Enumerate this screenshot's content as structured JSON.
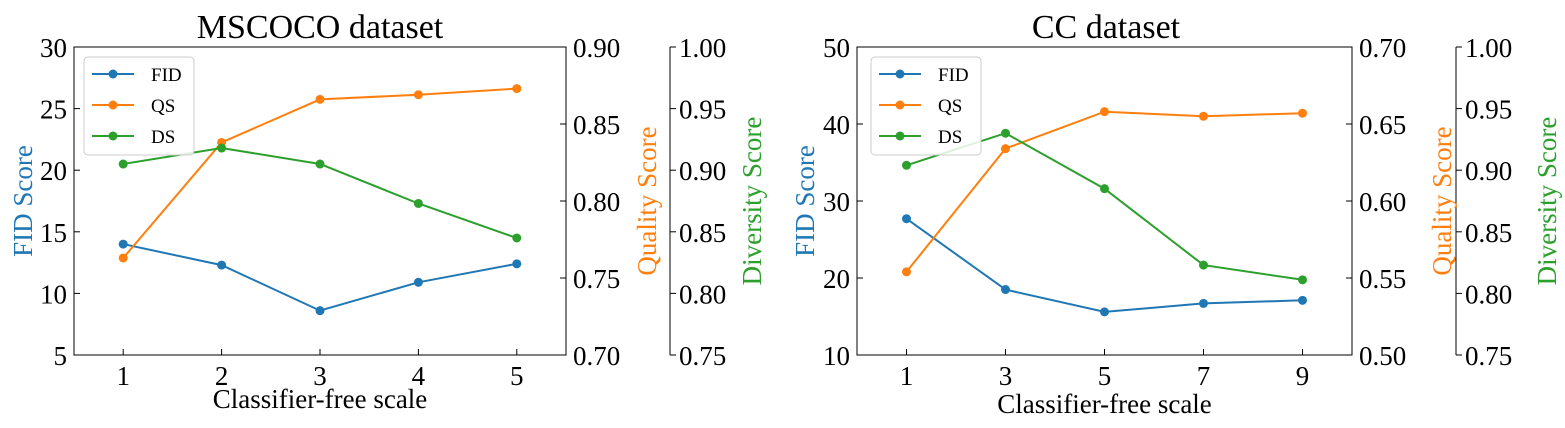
{
  "chart_data": [
    {
      "type": "line",
      "title": "MSCOCO dataset",
      "xlabel": "Classifier-free scale",
      "x": [
        1,
        2,
        3,
        4,
        5
      ],
      "xlim": [
        0.5,
        5.5
      ],
      "xticks": [
        "1",
        "2",
        "3",
        "4",
        "5"
      ],
      "axes": {
        "left": {
          "label": "FID Score",
          "range": [
            5,
            30
          ],
          "ticks": [
            "5",
            "10",
            "15",
            "20",
            "25",
            "30"
          ],
          "color": "#1f77b4"
        },
        "right1": {
          "label": "Quality Score",
          "range": [
            0.7,
            0.9
          ],
          "ticks": [
            "0.70",
            "0.75",
            "0.80",
            "0.85",
            "0.90"
          ],
          "color": "#ff7f0e"
        },
        "right2": {
          "label": "Diversity Score",
          "range": [
            0.75,
            1.0
          ],
          "ticks": [
            "0.75",
            "0.80",
            "0.85",
            "0.90",
            "0.95",
            "1.00"
          ],
          "color": "#2ca02c"
        }
      },
      "series": [
        {
          "name": "FID",
          "axis": "left",
          "color": "#1f77b4",
          "values": [
            14.0,
            12.3,
            8.6,
            10.9,
            12.4
          ]
        },
        {
          "name": "QS",
          "axis": "right1",
          "color": "#ff7f0e",
          "values": [
            0.763,
            0.838,
            0.866,
            0.869,
            0.873
          ]
        },
        {
          "name": "DS",
          "axis": "right2",
          "color": "#2ca02c",
          "values": [
            0.905,
            0.918,
            0.905,
            0.873,
            0.845
          ]
        }
      ],
      "legend": "top-left"
    },
    {
      "type": "line",
      "title": "CC dataset",
      "xlabel": "Classifier-free scale",
      "x": [
        1,
        3,
        5,
        7,
        9
      ],
      "xlim": [
        0,
        10
      ],
      "xticks": [
        "1",
        "3",
        "5",
        "7",
        "9"
      ],
      "axes": {
        "left": {
          "label": "FID Score",
          "range": [
            10,
            50
          ],
          "ticks": [
            "10",
            "20",
            "30",
            "40",
            "50"
          ],
          "color": "#1f77b4"
        },
        "right1": {
          "label": "Quality Score",
          "range": [
            0.5,
            0.7
          ],
          "ticks": [
            "0.50",
            "0.55",
            "0.60",
            "0.65",
            "0.70"
          ],
          "color": "#ff7f0e"
        },
        "right2": {
          "label": "Diversity Score",
          "range": [
            0.75,
            1.0
          ],
          "ticks": [
            "0.75",
            "0.80",
            "0.85",
            "0.90",
            "0.95",
            "1.00"
          ],
          "color": "#2ca02c"
        }
      },
      "series": [
        {
          "name": "FID",
          "axis": "left",
          "color": "#1f77b4",
          "values": [
            27.7,
            18.5,
            15.6,
            16.7,
            17.1
          ]
        },
        {
          "name": "QS",
          "axis": "right1",
          "color": "#ff7f0e",
          "values": [
            0.554,
            0.634,
            0.658,
            0.655,
            0.657
          ]
        },
        {
          "name": "DS",
          "axis": "right2",
          "color": "#2ca02c",
          "values": [
            0.904,
            0.93,
            0.885,
            0.823,
            0.811
          ]
        }
      ],
      "legend": "top-left"
    }
  ]
}
